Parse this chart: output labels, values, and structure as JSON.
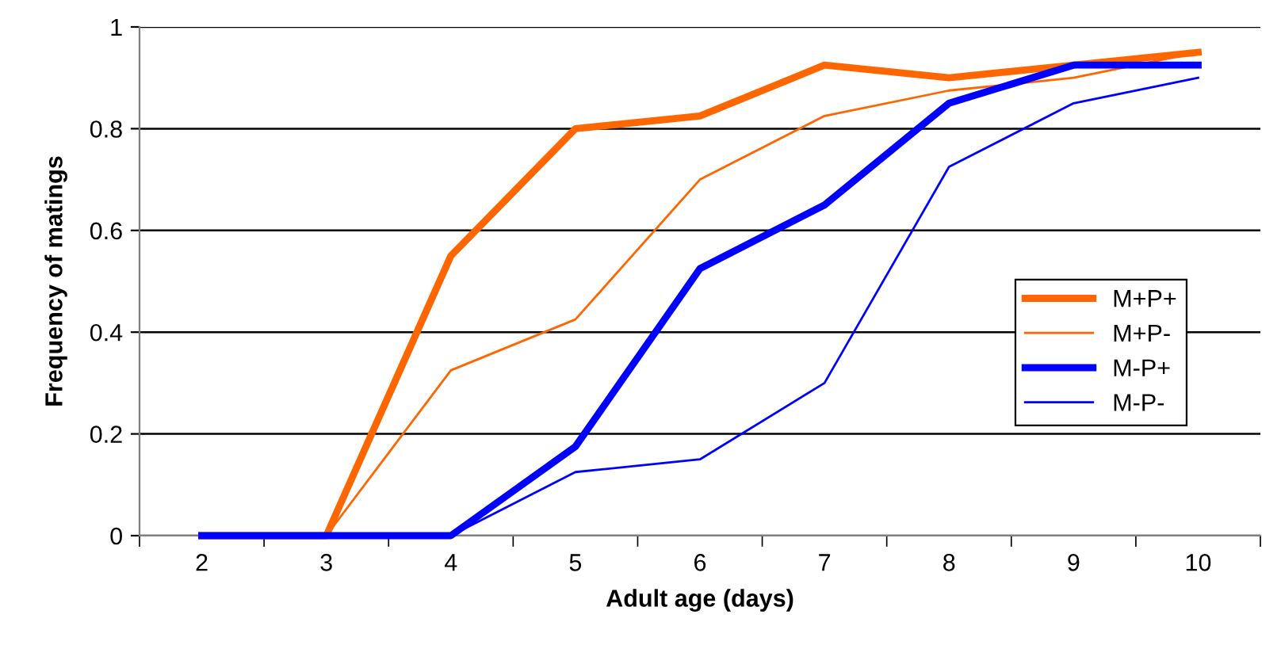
{
  "chart_data": {
    "type": "line",
    "xlabel": "Adult age (days)",
    "ylabel": "Frequency of matings",
    "categories": [
      "2",
      "3",
      "4",
      "5",
      "6",
      "7",
      "8",
      "9",
      "10"
    ],
    "series": [
      {
        "name": "M+P+",
        "color": "#ff6600",
        "values": [
          0,
          0,
          0.55,
          0.8,
          0.825,
          0.925,
          0.9,
          0.925,
          0.95
        ]
      },
      {
        "name": "M+P-",
        "color": "#ff6600",
        "values": [
          0,
          0,
          0.325,
          0.425,
          0.7,
          0.825,
          0.875,
          0.9,
          0.95
        ]
      },
      {
        "name": "M-P+",
        "color": "#0000ff",
        "values": [
          0,
          0,
          0,
          0.175,
          0.525,
          0.65,
          0.85,
          0.925,
          0.925
        ]
      },
      {
        "name": "M-P-",
        "color": "#0000ff",
        "values": [
          0,
          0,
          0,
          0.125,
          0.15,
          0.3,
          0.725,
          0.85,
          0.9
        ]
      }
    ],
    "ylim": [
      0,
      1
    ],
    "yticks": [
      0,
      0.2,
      0.4,
      0.6,
      0.8,
      1
    ],
    "grid": "y",
    "legend": "right",
    "marker": "none",
    "line_style": "solid"
  }
}
